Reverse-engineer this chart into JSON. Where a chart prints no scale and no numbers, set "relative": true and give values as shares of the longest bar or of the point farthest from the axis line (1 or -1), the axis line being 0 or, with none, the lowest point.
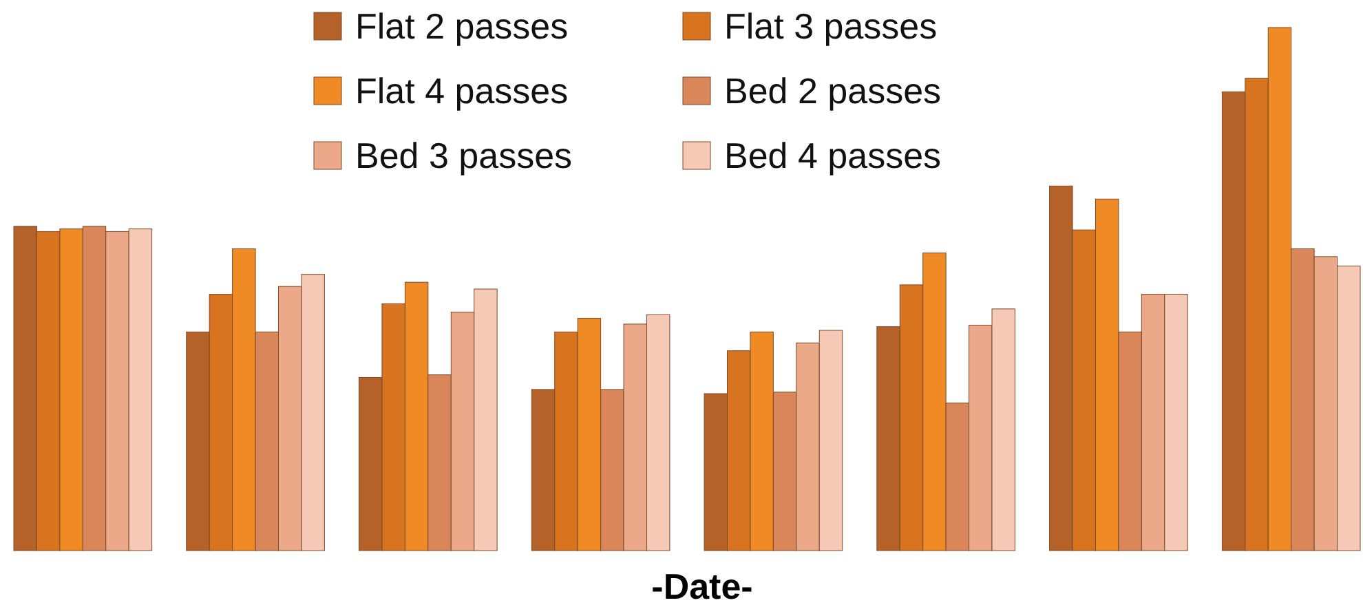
{
  "chart_data": {
    "type": "bar",
    "relative": true,
    "xlabel": "-Date-",
    "legend": "top",
    "categories": [
      null,
      null,
      null,
      null,
      null,
      null,
      null,
      null
    ],
    "series": [
      {
        "name": "Flat 2 passes",
        "color": "#b5622a",
        "values": [
          0.62,
          0.418,
          0.331,
          0.308,
          0.3,
          0.428,
          0.697,
          0.877
        ]
      },
      {
        "name": "Flat 3 passes",
        "color": "#d8731f",
        "values": [
          0.61,
          0.49,
          0.472,
          0.418,
          0.382,
          0.508,
          0.613,
          0.903
        ]
      },
      {
        "name": "Flat 4 passes",
        "color": "#f08a24",
        "values": [
          0.615,
          0.577,
          0.513,
          0.444,
          0.418,
          0.569,
          0.672,
          1
        ]
      },
      {
        "name": "Bed 2 passes",
        "color": "#d9875a",
        "values": [
          0.62,
          0.418,
          0.336,
          0.308,
          0.303,
          0.282,
          0.418,
          0.577
        ]
      },
      {
        "name": "Bed 3 passes",
        "color": "#eba98a",
        "values": [
          0.61,
          0.505,
          0.456,
          0.433,
          0.397,
          0.431,
          0.49,
          0.562
        ]
      },
      {
        "name": "Bed 4 passes",
        "color": "#f5c9b5",
        "values": [
          0.615,
          0.528,
          0.5,
          0.451,
          0.421,
          0.462,
          0.49,
          0.544
        ]
      }
    ]
  }
}
